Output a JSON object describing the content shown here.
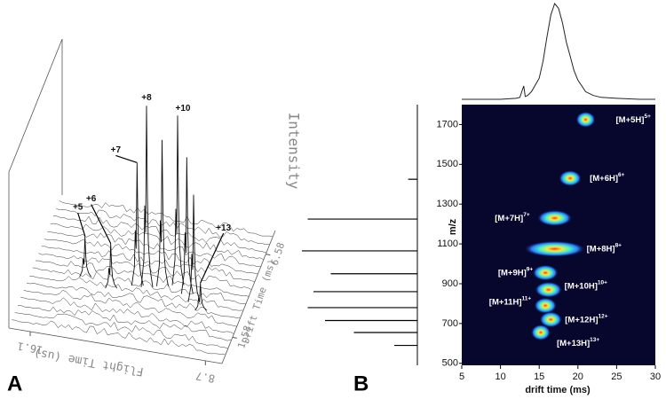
{
  "chart_data": [
    {
      "type": "waterfall3d",
      "panel_label": "A",
      "zlabel": "Intensity",
      "xlabel": "Drift Time (ms)",
      "ylabel": "Flight Time (us)",
      "xlim": [
        0,
        8
      ],
      "xticks": [
        1.58,
        6.58
      ],
      "ylim": [
        17,
        8
      ],
      "yticks": [
        16.1,
        8.7
      ],
      "zlim": [
        0,
        100
      ],
      "peaks": {
        "labels": [
          "+5",
          "+6",
          "+7",
          "+8",
          null,
          "+10",
          null,
          null,
          "+13"
        ],
        "flight": [
          14.8,
          13.6,
          12.6,
          12.2,
          11.6,
          11.0,
          10.5,
          10.1,
          9.7
        ],
        "drift": [
          3.6,
          3.2,
          3.6,
          3.6,
          3.8,
          4.0,
          3.6,
          3.2,
          2.8
        ],
        "intensity": [
          21,
          23,
          63,
          93,
          75,
          87,
          70,
          55,
          14
        ]
      }
    },
    {
      "type": "heatmap",
      "panel_label": "B",
      "xlabel": "drift time (ms)",
      "ylabel": "m/z",
      "xlim": [
        5,
        30
      ],
      "xticks": [
        5,
        10,
        15,
        20,
        25,
        30
      ],
      "ylim": [
        490,
        1800
      ],
      "yticks": [
        500,
        700,
        900,
        1100,
        1300,
        1500,
        1700
      ],
      "ions": {
        "names": [
          "[M+5H]",
          "[M+6H]",
          "[M+7H]",
          "[M+8H]",
          "[M+9H]",
          "[M+10H]",
          "[M+11H]",
          "[M+12H]",
          "[M+13H]"
        ],
        "charges": [
          "5+",
          "6+",
          "7+",
          "8+",
          "9+",
          "10+",
          "11+",
          "12+",
          "13+"
        ],
        "x": [
          21,
          19,
          17,
          17,
          15.8,
          16.2,
          15.8,
          16.5,
          15.2
        ],
        "y": [
          1725,
          1430,
          1230,
          1075,
          955,
          870,
          790,
          720,
          655
        ],
        "spread": [
          0.8,
          1.0,
          1.8,
          3.5,
          1.2,
          1.3,
          1.0,
          1.0,
          0.8
        ]
      },
      "top_profile": {
        "x": [
          5,
          8,
          10,
          12,
          12.5,
          13,
          13.2,
          13.5,
          14,
          15,
          15.5,
          16,
          16.5,
          17,
          17.5,
          18,
          18.5,
          19,
          19.5,
          20,
          21,
          22,
          23,
          25,
          28,
          30
        ],
        "values": [
          0,
          0,
          0,
          1,
          2,
          14,
          3,
          4,
          8,
          22,
          40,
          65,
          88,
          100,
          95,
          80,
          60,
          45,
          30,
          20,
          8,
          4,
          2,
          1,
          0,
          0
        ]
      },
      "side_spectrum": {
        "x": [
          1425,
          1225,
          1065,
          950,
          860,
          780,
          715,
          655,
          590
        ],
        "values": [
          8,
          95,
          100,
          75,
          90,
          95,
          80,
          55,
          20
        ]
      }
    }
  ]
}
